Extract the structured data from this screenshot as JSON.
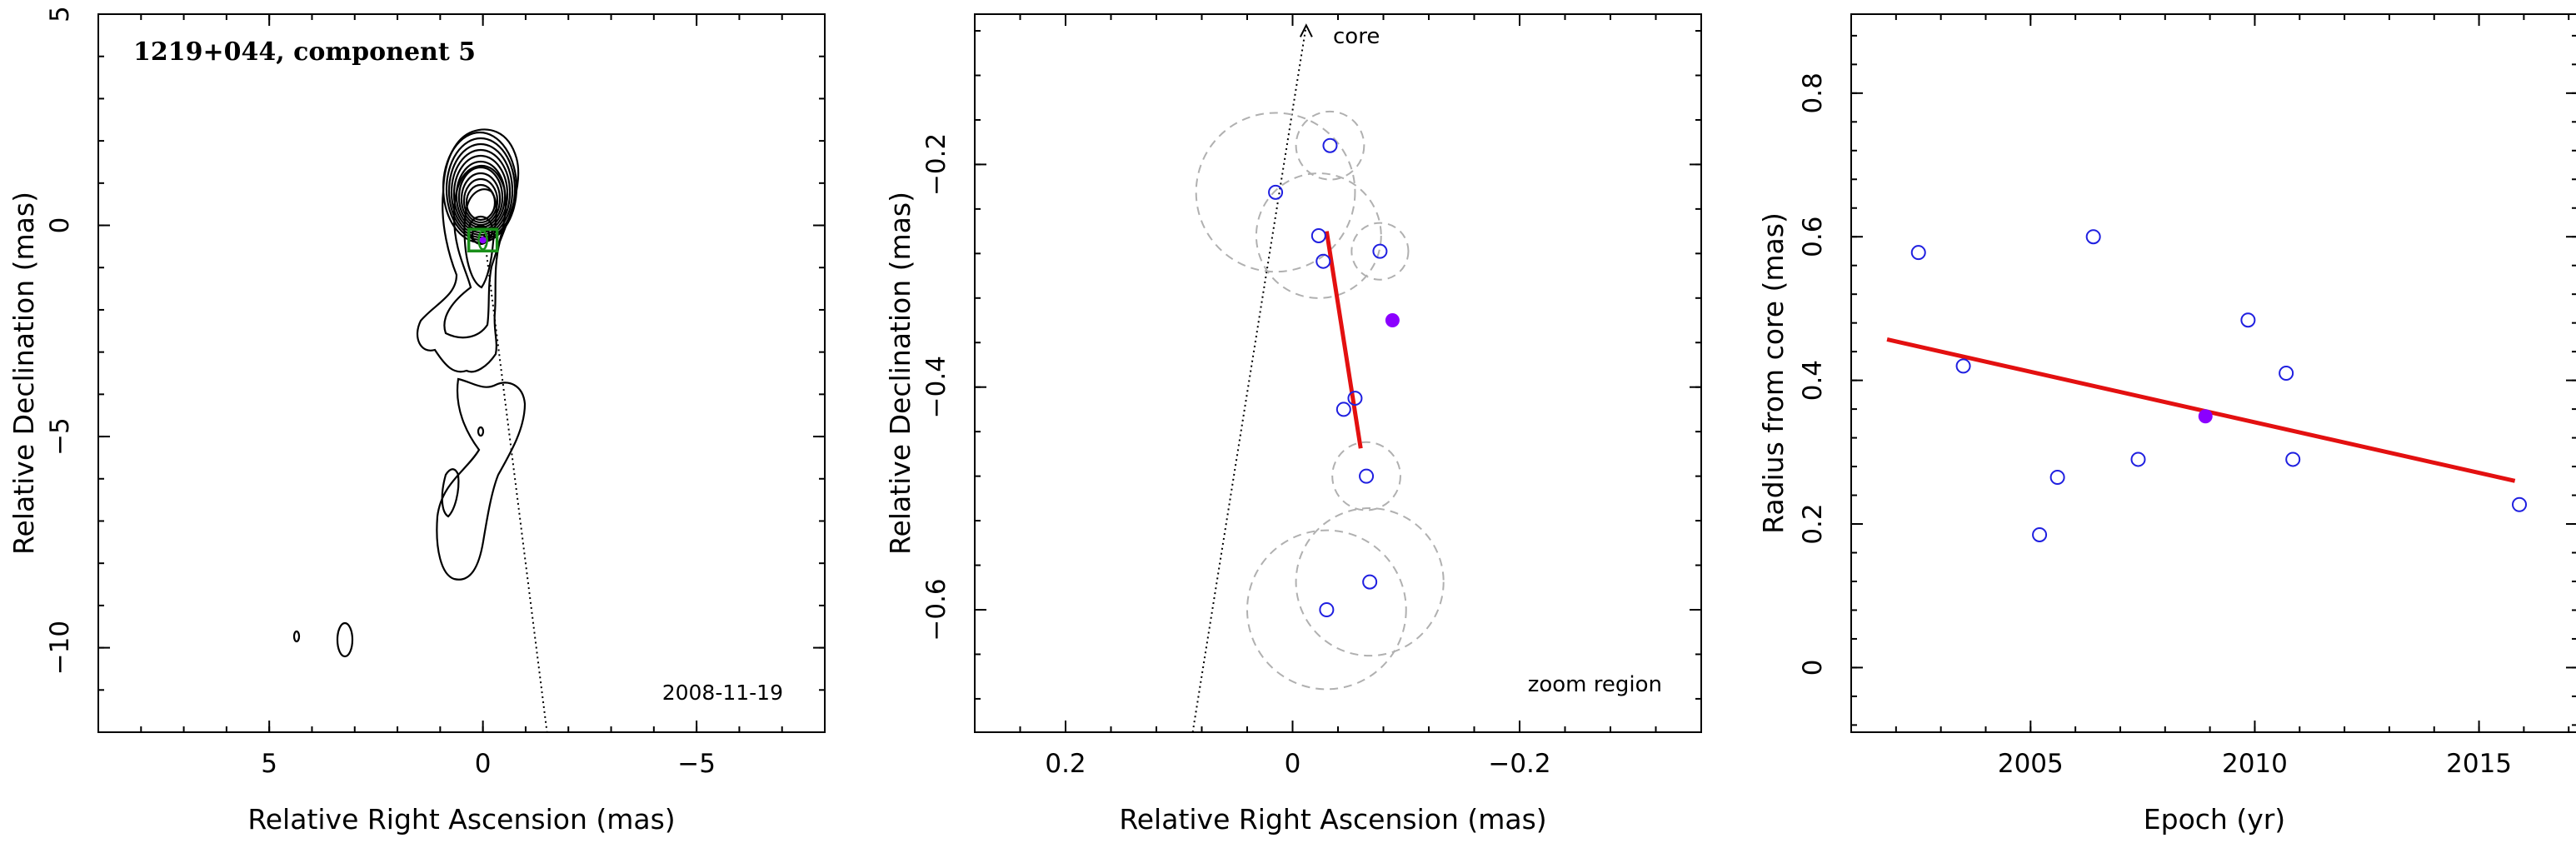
{
  "chart_data": [
    {
      "type": "contour",
      "panel": "left",
      "title": "1219+044, component 5",
      "epoch_label": "2008-11-19",
      "xlabel": "Relative Right Ascension (mas)",
      "ylabel": "Relative Declination (mas)",
      "xlim": [
        9,
        -8
      ],
      "ylim": [
        -12,
        5
      ],
      "xticks": [
        5,
        0,
        -5
      ],
      "yticks": [
        5,
        0,
        -5,
        -10
      ],
      "xtick_labels": [
        "5",
        "0",
        "−5"
      ],
      "ytick_labels": [
        "5",
        "0",
        "−5",
        "−10"
      ],
      "core_direction_line": {
        "from": [
          0.0,
          0.0
        ],
        "to": [
          -1.5,
          -12
        ]
      },
      "component_marker": {
        "x": 0.0,
        "y": -0.35,
        "marker": "green-box"
      },
      "colors": {
        "contour": "#000000",
        "marker": "#1a8f1a",
        "component": "#8b00ff"
      }
    },
    {
      "type": "scatter",
      "panel": "middle",
      "annotation_core": "core",
      "annotation_zoom": "zoom region",
      "xlabel": "Relative Right Ascension (mas)",
      "ylabel": "Relative Declination (mas)",
      "xlim": [
        0.28,
        -0.36
      ],
      "ylim": [
        -0.71,
        -0.065
      ],
      "xticks": [
        0.2,
        0,
        -0.2
      ],
      "yticks": [
        -0.2,
        -0.4,
        -0.6
      ],
      "xtick_labels": [
        "0.2",
        "0",
        "−0.2"
      ],
      "ytick_labels": [
        "−0.2",
        "−0.4",
        "−0.6"
      ],
      "points": [
        {
          "x": -0.033,
          "y": -0.183,
          "r": 0.03
        },
        {
          "x": 0.015,
          "y": -0.225,
          "r": 0.07
        },
        {
          "x": -0.023,
          "y": -0.264,
          "r": 0.055
        },
        {
          "x": -0.027,
          "y": -0.287,
          "r": 0.0
        },
        {
          "x": -0.077,
          "y": -0.278,
          "r": 0.025
        },
        {
          "x": -0.055,
          "y": -0.41,
          "r": 0.0
        },
        {
          "x": -0.045,
          "y": -0.42,
          "r": 0.0
        },
        {
          "x": -0.065,
          "y": -0.48,
          "r": 0.03
        },
        {
          "x": -0.068,
          "y": -0.575,
          "r": 0.065
        },
        {
          "x": -0.03,
          "y": -0.6,
          "r": 0.07
        }
      ],
      "highlight_point": {
        "x": -0.088,
        "y": -0.34
      },
      "fit_line": {
        "from": [
          -0.03,
          -0.26
        ],
        "to": [
          -0.06,
          -0.455
        ]
      },
      "core_direction_line": {
        "from": [
          0.088,
          -0.71
        ],
        "to": [
          -0.012,
          -0.075
        ]
      },
      "colors": {
        "points": "#1f1fe0",
        "highlight": "#8b00ff",
        "fit": "#e31010",
        "circles": "#b0b0b0"
      }
    },
    {
      "type": "scatter",
      "panel": "right",
      "xlabel": "Epoch (yr)",
      "ylabel": "Radius from core (mas)",
      "xlim": [
        2001.0,
        2017.2
      ],
      "ylim": [
        -0.09,
        0.91
      ],
      "xticks": [
        2005,
        2010,
        2015
      ],
      "yticks": [
        0,
        0.2,
        0.4,
        0.6,
        0.8
      ],
      "xtick_labels": [
        "2005",
        "2010",
        "2015"
      ],
      "ytick_labels": [
        "0",
        "0.2",
        "0.4",
        "0.6",
        "0.8"
      ],
      "points": [
        {
          "x": 2002.5,
          "y": 0.578
        },
        {
          "x": 2003.5,
          "y": 0.42
        },
        {
          "x": 2005.2,
          "y": 0.185
        },
        {
          "x": 2005.6,
          "y": 0.265
        },
        {
          "x": 2006.4,
          "y": 0.6
        },
        {
          "x": 2007.4,
          "y": 0.29
        },
        {
          "x": 2009.85,
          "y": 0.484
        },
        {
          "x": 2010.7,
          "y": 0.41
        },
        {
          "x": 2010.85,
          "y": 0.29
        },
        {
          "x": 2015.9,
          "y": 0.227
        }
      ],
      "highlight_point": {
        "x": 2008.9,
        "y": 0.35
      },
      "fit_line": {
        "from": [
          2001.8,
          0.457
        ],
        "to": [
          2015.8,
          0.26
        ]
      },
      "colors": {
        "points": "#1f1fe0",
        "highlight": "#8b00ff",
        "fit": "#e31010"
      }
    }
  ]
}
